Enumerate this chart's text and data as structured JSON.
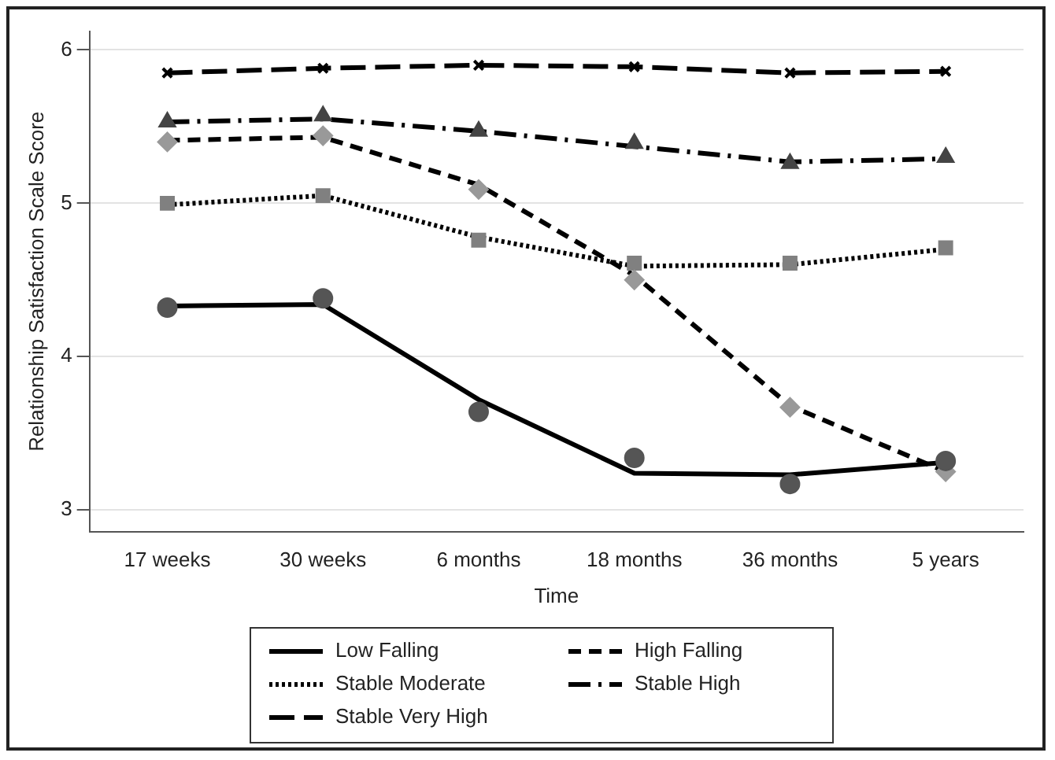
{
  "chart_data": {
    "type": "line",
    "xlabel": "Time",
    "ylabel": "Relationship Satisfaction Scale Score",
    "categories": [
      "17 weeks",
      "30 weeks",
      "6 months",
      "18 months",
      "36 months",
      "5 years"
    ],
    "ylim": [
      2.86,
      6.12
    ],
    "yticks": [
      3,
      4,
      5,
      6
    ],
    "grid": "y",
    "legend": "bottom",
    "series": [
      {
        "name": "Low Falling",
        "color": "#000000",
        "line_style": "solid",
        "marker": "none",
        "values": [
          4.33,
          4.34,
          3.72,
          3.24,
          3.23,
          3.31
        ]
      },
      {
        "name": "High Falling",
        "color": "#000000",
        "line_style": "dashed",
        "marker": "none",
        "values": [
          5.41,
          5.43,
          5.12,
          4.53,
          3.68,
          3.25
        ]
      },
      {
        "name": "Stable Moderate",
        "color": "#000000",
        "line_style": "dotted",
        "marker": "none",
        "values": [
          4.99,
          5.05,
          4.78,
          4.59,
          4.6,
          4.7
        ]
      },
      {
        "name": "Stable High",
        "color": "#000000",
        "line_style": "dashdot",
        "marker": "none",
        "values": [
          5.53,
          5.55,
          5.47,
          5.37,
          5.27,
          5.29
        ]
      },
      {
        "name": "Stable Very High",
        "color": "#000000",
        "line_style": "longdash",
        "marker": "none",
        "values": [
          5.85,
          5.88,
          5.9,
          5.89,
          5.85,
          5.86
        ]
      },
      {
        "type": "scatter",
        "color": "#555555",
        "marker": "circle",
        "x": [
          "17 weeks",
          "30 weeks",
          "6 months",
          "18 months",
          "36 months",
          "5 years"
        ],
        "values": [
          4.32,
          4.38,
          3.64,
          3.34,
          3.17,
          3.32
        ]
      },
      {
        "type": "scatter",
        "color": "#999999",
        "marker": "diamond",
        "x": [
          "17 weeks",
          "30 weeks",
          "6 months",
          "18 months",
          "36 months",
          "5 years"
        ],
        "values": [
          5.4,
          5.44,
          5.09,
          4.5,
          3.67,
          3.25
        ]
      },
      {
        "type": "scatter",
        "color": "#808080",
        "marker": "square",
        "x": [
          "17 weeks",
          "30 weeks",
          "6 months",
          "18 months",
          "36 months",
          "5 years"
        ],
        "values": [
          5.0,
          5.05,
          4.76,
          4.61,
          4.61,
          4.71
        ]
      },
      {
        "type": "scatter",
        "color": "#444444",
        "marker": "triangle",
        "x": [
          "17 weeks",
          "30 weeks",
          "6 months",
          "18 months",
          "36 months",
          "5 years"
        ],
        "values": [
          5.53,
          5.57,
          5.47,
          5.39,
          5.26,
          5.3
        ]
      },
      {
        "type": "scatter",
        "color": "#000000",
        "marker": "cross",
        "x": [
          "17 weeks",
          "30 weeks",
          "6 months",
          "18 months",
          "36 months",
          "5 years"
        ],
        "values": [
          5.85,
          5.88,
          5.9,
          5.89,
          5.85,
          5.86
        ]
      }
    ]
  }
}
